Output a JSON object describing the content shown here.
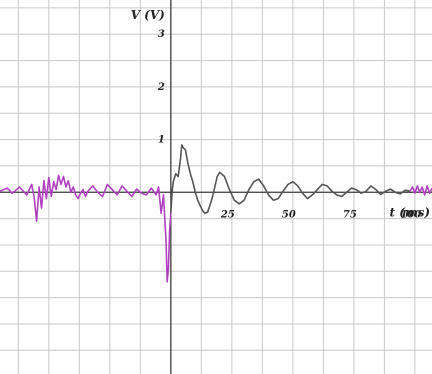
{
  "chart_data": {
    "type": "line",
    "xlabel": "t (ms)",
    "ylabel": "V (V)",
    "xlim": [
      -70,
      107
    ],
    "ylim": [
      -3.45,
      3.65
    ],
    "x_ticks": [
      25,
      50,
      75,
      100
    ],
    "y_ticks": [
      1,
      2,
      3
    ],
    "grid": true,
    "colors": {
      "grid": "#c8c8c8",
      "axis": "#3a3a3a",
      "series_purple": "#b040c0",
      "series_gray": "#555555"
    },
    "series": [
      {
        "color": "#b040c0",
        "x": [
          -70,
          -67,
          -65,
          -62,
          -59,
          -57,
          -56,
          -55,
          -54,
          -53,
          -52,
          -51,
          -50,
          -49,
          -48,
          -47,
          -46,
          -45,
          -44,
          -43,
          -42,
          -41,
          -40,
          -39,
          -38,
          -37,
          -36,
          -35,
          -34,
          -32,
          -30,
          -28,
          -26,
          -24,
          -22,
          -20,
          -18,
          -16,
          -14,
          -12,
          -10,
          -8,
          -6,
          -5,
          -4,
          -3,
          -2,
          -1.5,
          -1,
          -0.5,
          0
        ],
        "y": [
          0.02,
          0.08,
          -0.02,
          0.1,
          -0.05,
          0.15,
          -0.1,
          -0.55,
          0.1,
          -0.3,
          0.22,
          -0.12,
          0.28,
          -0.08,
          0.2,
          0.05,
          0.32,
          0.15,
          0.3,
          0.1,
          0.22,
          0.0,
          0.1,
          -0.05,
          -0.12,
          -0.02,
          0.05,
          -0.08,
          0.02,
          0.12,
          0.0,
          -0.08,
          0.15,
          0.05,
          -0.05,
          0.12,
          0.02,
          -0.08,
          0.06,
          -0.02,
          -0.05,
          0.08,
          -0.05,
          0.1,
          -0.4,
          -0.05,
          -0.9,
          -1.7,
          -1.45,
          -0.75,
          -0.4
        ]
      },
      {
        "color": "#555555",
        "x": [
          0,
          0.5,
          1,
          2,
          3,
          4,
          4.5,
          5,
          6,
          7,
          8,
          9,
          10,
          11,
          12,
          13,
          14,
          15,
          16,
          17,
          18,
          19,
          20,
          22,
          24,
          26,
          28,
          30,
          32,
          34,
          36,
          38,
          40,
          42,
          44,
          46,
          48,
          50,
          52,
          54,
          56,
          58,
          60,
          62,
          64,
          66,
          68,
          70,
          72,
          74,
          76,
          78,
          80,
          82,
          84,
          86,
          88,
          90,
          92,
          94,
          96,
          98
        ],
        "y": [
          -0.4,
          0.0,
          0.2,
          0.35,
          0.3,
          0.65,
          0.9,
          0.85,
          0.8,
          0.55,
          0.35,
          0.2,
          0.0,
          -0.15,
          -0.25,
          -0.35,
          -0.4,
          -0.38,
          -0.25,
          -0.1,
          0.1,
          0.3,
          0.38,
          0.3,
          0.05,
          -0.15,
          -0.22,
          -0.15,
          0.05,
          0.2,
          0.25,
          0.12,
          -0.05,
          -0.15,
          -0.12,
          0.02,
          0.15,
          0.2,
          0.12,
          -0.02,
          -0.12,
          -0.05,
          0.05,
          0.15,
          0.12,
          0.02,
          -0.05,
          -0.08,
          0.0,
          0.08,
          0.05,
          -0.02,
          0.02,
          0.12,
          0.05,
          -0.04,
          0.02,
          0.06,
          0.0,
          -0.03,
          0.04,
          0.02
        ]
      },
      {
        "color": "#b040c0",
        "x": [
          98,
          99,
          100,
          101,
          102,
          103,
          104,
          105,
          106,
          107
        ],
        "y": [
          0.02,
          0.1,
          -0.02,
          0.12,
          0.0,
          0.1,
          -0.05,
          0.12,
          -0.02,
          0.08
        ]
      }
    ]
  }
}
